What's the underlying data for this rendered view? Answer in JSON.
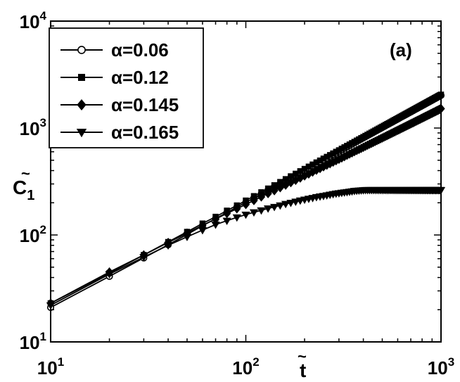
{
  "chart_data": {
    "type": "line",
    "xscale": "log",
    "yscale": "log",
    "xlim": [
      10,
      1000
    ],
    "ylim": [
      10,
      10000
    ],
    "xlabel": {
      "base": "t",
      "tilde": "~"
    },
    "ylabel": {
      "base": "C",
      "sub": "1",
      "tilde": "~"
    },
    "panel_label": "(a)",
    "grid": false,
    "legend_position": "top-left",
    "x_ticks": [
      {
        "value": 10,
        "base": "10",
        "exp": "1"
      },
      {
        "value": 100,
        "base": "10",
        "exp": "2"
      },
      {
        "value": 1000,
        "base": "10",
        "exp": "3"
      }
    ],
    "y_ticks": [
      {
        "value": 10,
        "base": "10",
        "exp": "1"
      },
      {
        "value": 100,
        "base": "10",
        "exp": "2"
      },
      {
        "value": 1000,
        "base": "10",
        "exp": "3"
      },
      {
        "value": 10000,
        "base": "10",
        "exp": "4"
      }
    ],
    "x": [
      10,
      20,
      30,
      40,
      50,
      60,
      70,
      80,
      90,
      100,
      110,
      120,
      130,
      140,
      150,
      160,
      170,
      180,
      190,
      200,
      210,
      220,
      230,
      240,
      250,
      260,
      270,
      280,
      290,
      300,
      310,
      320,
      330,
      340,
      350,
      360,
      370,
      380,
      390,
      400,
      410,
      420,
      430,
      440,
      450,
      460,
      470,
      480,
      490,
      500,
      510,
      520,
      530,
      540,
      550,
      560,
      570,
      580,
      590,
      600,
      610,
      620,
      630,
      640,
      650,
      660,
      670,
      680,
      690,
      700,
      710,
      720,
      730,
      740,
      750,
      760,
      770,
      780,
      790,
      800,
      810,
      820,
      830,
      840,
      850,
      860,
      870,
      880,
      890,
      900,
      910,
      920,
      930,
      940,
      950,
      960,
      970,
      980,
      990,
      1000
    ],
    "series": [
      {
        "name": "α=0.06",
        "marker": "circle",
        "values": [
          21,
          41,
          61,
          81,
          101,
          122,
          142,
          162,
          182,
          202,
          222,
          243,
          263,
          283,
          303,
          323,
          344,
          364,
          384,
          404,
          424,
          445,
          465,
          485,
          505,
          525,
          546,
          566,
          586,
          606,
          626,
          647,
          667,
          687,
          707,
          727,
          748,
          768,
          788,
          808,
          828,
          849,
          869,
          889,
          909,
          929,
          950,
          970,
          990,
          1010,
          1030,
          1051,
          1071,
          1091,
          1111,
          1131,
          1152,
          1172,
          1192,
          1212,
          1232,
          1253,
          1273,
          1293,
          1313,
          1333,
          1354,
          1374,
          1394,
          1414,
          1434,
          1455,
          1475,
          1495,
          1515,
          1535,
          1556,
          1576,
          1596,
          1616,
          1636,
          1657,
          1677,
          1697,
          1717,
          1737,
          1758,
          1778,
          1798,
          1818,
          1838,
          1859,
          1879,
          1899,
          1919,
          1939,
          1960,
          1980,
          2000,
          2020
        ]
      },
      {
        "name": "α=0.12",
        "marker": "square",
        "values": [
          23,
          44,
          65,
          86,
          107,
          128,
          148,
          169,
          189,
          210,
          231,
          251,
          272,
          292,
          313,
          333,
          354,
          374,
          395,
          415,
          436,
          456,
          477,
          497,
          518,
          538,
          559,
          579,
          600,
          620,
          641,
          661,
          682,
          702,
          723,
          743,
          764,
          784,
          805,
          825,
          846,
          866,
          887,
          907,
          928,
          948,
          969,
          989,
          1010,
          1030,
          1051,
          1071,
          1092,
          1112,
          1133,
          1153,
          1174,
          1194,
          1215,
          1235,
          1256,
          1276,
          1297,
          1317,
          1338,
          1358,
          1379,
          1399,
          1420,
          1440,
          1461,
          1481,
          1502,
          1522,
          1543,
          1563,
          1584,
          1604,
          1625,
          1645,
          1666,
          1686,
          1707,
          1727,
          1748,
          1768,
          1789,
          1809,
          1830,
          1850,
          1871,
          1891,
          1912,
          1932,
          1953,
          1973,
          1994,
          2014,
          2035,
          2055
        ]
      },
      {
        "name": "α=0.145",
        "marker": "diamond",
        "values": [
          23,
          45,
          65,
          85,
          104,
          123,
          141,
          159,
          176,
          193,
          210,
          227,
          244,
          260,
          277,
          293,
          309,
          325,
          341,
          357,
          372,
          388,
          404,
          419,
          435,
          450,
          465,
          481,
          496,
          511,
          526,
          541,
          557,
          572,
          587,
          602,
          617,
          631,
          646,
          661,
          676,
          691,
          706,
          720,
          735,
          750,
          764,
          779,
          794,
          808,
          823,
          837,
          852,
          866,
          881,
          895,
          910,
          924,
          939,
          953,
          967,
          982,
          996,
          1010,
          1025,
          1039,
          1053,
          1068,
          1082,
          1096,
          1110,
          1124,
          1139,
          1153,
          1167,
          1181,
          1195,
          1209,
          1223,
          1238,
          1252,
          1266,
          1280,
          1294,
          1308,
          1322,
          1336,
          1350,
          1364,
          1378,
          1392,
          1406,
          1420,
          1434,
          1448,
          1462,
          1476,
          1490,
          1504,
          1518
        ]
      },
      {
        "name": "α=0.165",
        "marker": "triangle-down",
        "values": [
          22,
          43,
          62,
          80,
          96,
          111,
          125,
          136,
          146,
          155,
          163,
          170,
          177,
          183,
          189,
          195,
          200,
          205,
          210,
          214,
          218,
          222,
          226,
          229,
          232,
          235,
          238,
          241,
          244,
          246,
          248,
          250,
          252,
          254,
          256,
          258,
          259,
          260,
          261,
          262,
          263,
          263,
          263,
          263,
          263,
          263,
          263,
          263,
          263,
          263,
          263,
          263,
          263,
          263,
          263,
          263,
          263,
          263,
          263,
          263,
          263,
          263,
          263,
          263,
          263,
          263,
          263,
          263,
          263,
          263,
          263,
          263,
          263,
          263,
          263,
          263,
          263,
          263,
          263,
          263,
          263,
          263,
          263,
          263,
          263,
          263,
          263,
          263,
          263,
          263,
          263,
          263,
          263,
          263,
          263,
          263,
          263,
          263,
          263,
          263
        ]
      }
    ]
  }
}
